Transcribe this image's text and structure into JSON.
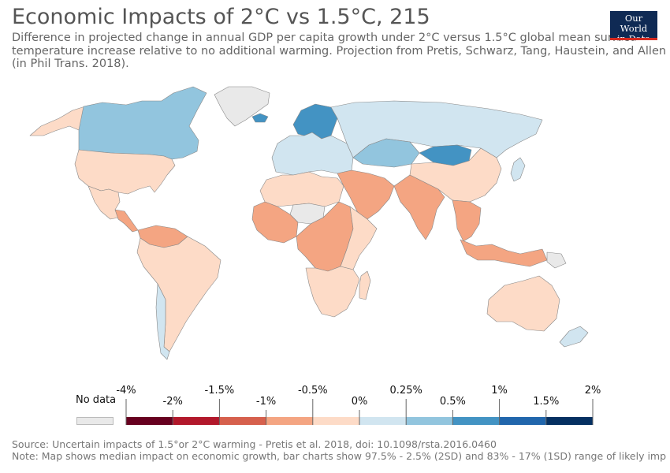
{
  "header": {
    "title": "Economic Impacts of 2°C vs 1.5°C, 215",
    "subtitle_lines": [
      "Difference in projected change in annual GDP per capita growth under 2°C versus 1.5°C global mean surface",
      "temperature increase relative to no additional warming. Projection from Pretis, Schwarz, Tang, Haustein, and Allen",
      "(in Phil Trans. 2018)."
    ]
  },
  "logo": {
    "line1": "Our World",
    "line2": "in Data"
  },
  "legend": {
    "no_data_label": "No data",
    "no_data_color": "#e9e9e9",
    "upper_labels": [
      "-4%",
      "-1.5%",
      "-0.5%",
      "0.25%",
      "1%",
      "2%"
    ],
    "lower_labels": [
      "-2%",
      "-1%",
      "0%",
      "0.5%",
      "1.5%"
    ],
    "bins": [
      {
        "from": "-4%",
        "to": "-2%",
        "color": "#67001f"
      },
      {
        "from": "-2%",
        "to": "-1.5%",
        "color": "#b2182b"
      },
      {
        "from": "-1.5%",
        "to": "-1%",
        "color": "#d6604d"
      },
      {
        "from": "-1%",
        "to": "-0.5%",
        "color": "#f4a582"
      },
      {
        "from": "-0.5%",
        "to": "0%",
        "color": "#fddbc7"
      },
      {
        "from": "0%",
        "to": "0.25%",
        "color": "#d1e5f0"
      },
      {
        "from": "0.25%",
        "to": "0.5%",
        "color": "#92c5de"
      },
      {
        "from": "0.5%",
        "to": "1%",
        "color": "#4393c3"
      },
      {
        "from": "1%",
        "to": "1.5%",
        "color": "#2166ac"
      },
      {
        "from": "1.5%",
        "to": "2%",
        "color": "#053061"
      }
    ]
  },
  "map_regions": [
    {
      "name": "Canada",
      "color": "#92c5de"
    },
    {
      "name": "United States",
      "color": "#fddbc7"
    },
    {
      "name": "Alaska",
      "color": "#fddbc7"
    },
    {
      "name": "Greenland",
      "color": "#e9e9e9"
    },
    {
      "name": "Mexico",
      "color": "#fddbc7"
    },
    {
      "name": "Central America",
      "color": "#f4a582"
    },
    {
      "name": "Northern South America",
      "color": "#f4a582"
    },
    {
      "name": "South America",
      "color": "#fddbc7"
    },
    {
      "name": "Chile",
      "color": "#d1e5f0"
    },
    {
      "name": "Iceland",
      "color": "#4393c3"
    },
    {
      "name": "Scandinavia",
      "color": "#4393c3"
    },
    {
      "name": "Europe",
      "color": "#d1e5f0"
    },
    {
      "name": "Russia",
      "color": "#d1e5f0"
    },
    {
      "name": "Kazakhstan",
      "color": "#92c5de"
    },
    {
      "name": "Mongolia",
      "color": "#4393c3"
    },
    {
      "name": "China",
      "color": "#fddbc7"
    },
    {
      "name": "Middle East",
      "color": "#f4a582"
    },
    {
      "name": "India",
      "color": "#f4a582"
    },
    {
      "name": "Southeast Asia",
      "color": "#f4a582"
    },
    {
      "name": "Indonesia",
      "color": "#f4a582"
    },
    {
      "name": "North Africa",
      "color": "#fddbc7"
    },
    {
      "name": "Sahara",
      "color": "#e9e9e9"
    },
    {
      "name": "West Africa",
      "color": "#f4a582"
    },
    {
      "name": "Central Africa",
      "color": "#f4a582"
    },
    {
      "name": "East Africa",
      "color": "#fddbc7"
    },
    {
      "name": "Southern Africa",
      "color": "#fddbc7"
    },
    {
      "name": "Madagascar",
      "color": "#fddbc7"
    },
    {
      "name": "Australia",
      "color": "#fddbc7"
    },
    {
      "name": "New Zealand",
      "color": "#d1e5f0"
    },
    {
      "name": "Japan",
      "color": "#d1e5f0"
    },
    {
      "name": "Papua New Guinea",
      "color": "#e9e9e9"
    }
  ],
  "footer": {
    "source": "Source: Uncertain impacts of 1.5°or 2°C warming - Pretis et al. 2018, doi: 10.1098/rsta.2016.0460",
    "note": "Note: Map shows median impact on economic growth, bar charts show 97.5% - 2.5% (2SD) and 83% - 17% (1SD) range of likely imp"
  }
}
